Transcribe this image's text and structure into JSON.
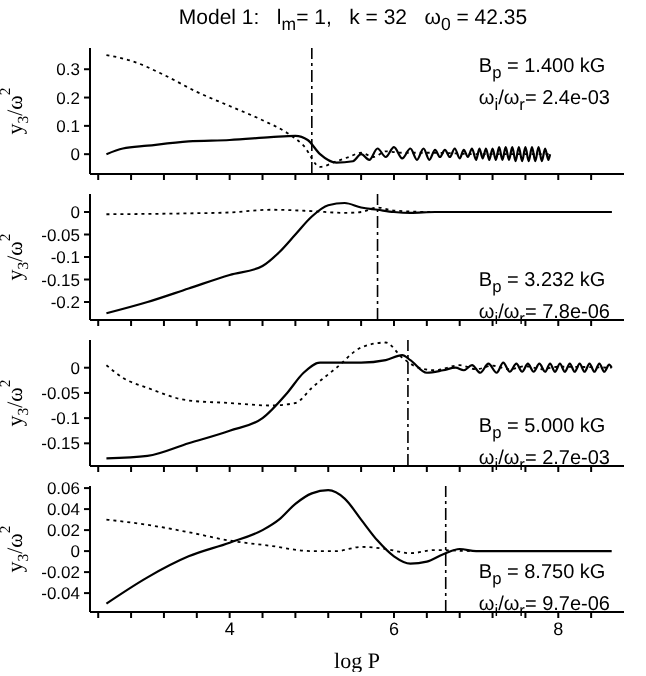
{
  "chart_data": [
    {
      "type": "line",
      "title": "Model 1:   l$_{m}$= 1,   k = 32   ω$_{0}$ = 42.35",
      "ylabel": "y$_{3}$/ω$^{2}$",
      "xlim": [
        2.3,
        8.8
      ],
      "xticks": [
        {
          "value": 2.4,
          "label": null
        },
        {
          "value": 2.8,
          "label": null
        },
        {
          "value": 3.2,
          "label": null
        },
        {
          "value": 3.6,
          "label": null
        },
        {
          "value": 4,
          "label": null
        },
        {
          "value": 4.4,
          "label": null
        },
        {
          "value": 4.8,
          "label": null
        },
        {
          "value": 5.2,
          "label": null
        },
        {
          "value": 5.6,
          "label": null
        },
        {
          "value": 6,
          "label": null
        },
        {
          "value": 6.4,
          "label": null
        },
        {
          "value": 6.8,
          "label": null
        },
        {
          "value": 7.2,
          "label": null
        },
        {
          "value": 7.6,
          "label": null
        },
        {
          "value": 8,
          "label": null
        },
        {
          "value": 8.4,
          "label": null
        }
      ],
      "ylim": [
        -0.07,
        0.375
      ],
      "yticks": [
        0,
        0.1,
        0.2,
        0.3
      ],
      "tick_labels": "y",
      "series": [
        {
          "color": "#000000",
          "line_style": "solid",
          "x": [
            2.5,
            2.7,
            3.0,
            3.5,
            4.0,
            4.5,
            4.8,
            4.95,
            5.1,
            5.3,
            5.5,
            5.6,
            5.7,
            5.8,
            5.9,
            6.0,
            6.1,
            6.2,
            6.28,
            6.36,
            6.43,
            6.5,
            6.56,
            6.62,
            6.68,
            6.74,
            6.8,
            6.85,
            6.9,
            6.95,
            7.0,
            7.04,
            7.08,
            7.12,
            7.16,
            7.2,
            7.24,
            7.28,
            7.32,
            7.36,
            7.4,
            7.44,
            7.48,
            7.52,
            7.56,
            7.6,
            7.64,
            7.68,
            7.72,
            7.76,
            7.8,
            7.84,
            7.88,
            7.9
          ],
          "values": [
            0,
            0.02,
            0.03,
            0.045,
            0.05,
            0.06,
            0.065,
            0.05,
            0,
            -0.03,
            -0.025,
            0,
            -0.02,
            0.02,
            -0.01,
            0.025,
            -0.015,
            0.02,
            -0.02,
            0.02,
            -0.02,
            0.015,
            -0.01,
            0.015,
            -0.01,
            0.02,
            -0.015,
            0.015,
            -0.01,
            0.02,
            -0.02,
            0.02,
            -0.015,
            0.02,
            -0.02,
            0.02,
            -0.02,
            0.025,
            -0.02,
            0.025,
            -0.02,
            0.025,
            -0.025,
            0.025,
            -0.025,
            0.025,
            -0.025,
            0.025,
            -0.025,
            0.025,
            -0.025,
            0.02,
            -0.02,
            0
          ]
        },
        {
          "color": "#000000",
          "line_style": "dotted",
          "x": [
            2.5,
            2.8,
            3.2,
            3.6,
            4.0,
            4.4,
            4.7,
            4.9,
            5.1,
            5.3,
            5.45,
            5.6,
            5.75,
            5.9,
            6.1,
            6.5,
            7.0,
            7.9
          ],
          "values": [
            0.35,
            0.33,
            0.28,
            0.22,
            0.17,
            0.12,
            0.075,
            0.03,
            -0.045,
            -0.025,
            -0.01,
            0.005,
            -0.01,
            0.01,
            0.005,
            0.005,
            0,
            0
          ]
        }
      ],
      "ref_lines": [
        {
          "axis": "x",
          "value": 5.0,
          "color": "#000000",
          "line_style": "dashed"
        }
      ],
      "annotations": [
        "B$_{p}$ = 1.400 kG",
        "ω$_{i}$/ω$_{r}$= 2.4e-03"
      ]
    },
    {
      "type": "line",
      "ylabel": "y$_{3}$/ω$^{2}$",
      "xlim": [
        2.3,
        8.8
      ],
      "xticks": [
        {
          "value": 2.4,
          "label": null
        },
        {
          "value": 2.8,
          "label": null
        },
        {
          "value": 3.2,
          "label": null
        },
        {
          "value": 3.6,
          "label": null
        },
        {
          "value": 4,
          "label": null
        },
        {
          "value": 4.4,
          "label": null
        },
        {
          "value": 4.8,
          "label": null
        },
        {
          "value": 5.2,
          "label": null
        },
        {
          "value": 5.6,
          "label": null
        },
        {
          "value": 6,
          "label": null
        },
        {
          "value": 6.4,
          "label": null
        },
        {
          "value": 6.8,
          "label": null
        },
        {
          "value": 7.2,
          "label": null
        },
        {
          "value": 7.6,
          "label": null
        },
        {
          "value": 8,
          "label": null
        },
        {
          "value": 8.4,
          "label": null
        }
      ],
      "ylim": [
        -0.24,
        0.04
      ],
      "yticks": [
        -0.2,
        -0.15,
        -0.1,
        -0.05,
        0
      ],
      "tick_labels": "y",
      "series": [
        {
          "color": "#000000",
          "line_style": "solid",
          "x": [
            2.5,
            3.0,
            3.5,
            4.0,
            4.4,
            4.6,
            4.8,
            5.0,
            5.2,
            5.4,
            5.6,
            5.8,
            6.0,
            6.2,
            6.5,
            8.65
          ],
          "values": [
            -0.225,
            -0.2,
            -0.17,
            -0.14,
            -0.12,
            -0.09,
            -0.05,
            -0.01,
            0.015,
            0.02,
            0.01,
            0.005,
            0,
            -0.002,
            0,
            0
          ]
        },
        {
          "color": "#000000",
          "line_style": "dotted",
          "x": [
            2.5,
            3.5,
            4.0,
            4.5,
            5.0,
            5.4,
            5.6,
            5.8,
            6.0,
            6.5,
            8.65
          ],
          "values": [
            -0.005,
            -0.003,
            -0.001,
            0.005,
            0.002,
            -0.002,
            0,
            0.01,
            0.003,
            0,
            0
          ]
        }
      ],
      "ref_lines": [
        {
          "axis": "x",
          "value": 5.8,
          "color": "#000000",
          "line_style": "dashed"
        }
      ],
      "annotations": [
        "B$_{p}$ = 3.232 kG",
        "ω$_{i}$/ω$_{r}$= 7.8e-06"
      ]
    },
    {
      "type": "line",
      "ylabel": "y$_{3}$/ω$^{2}$",
      "xlim": [
        2.3,
        8.8
      ],
      "xticks": [
        {
          "value": 2.4,
          "label": null
        },
        {
          "value": 2.8,
          "label": null
        },
        {
          "value": 3.2,
          "label": null
        },
        {
          "value": 3.6,
          "label": null
        },
        {
          "value": 4,
          "label": null
        },
        {
          "value": 4.4,
          "label": null
        },
        {
          "value": 4.8,
          "label": null
        },
        {
          "value": 5.2,
          "label": null
        },
        {
          "value": 5.6,
          "label": null
        },
        {
          "value": 6,
          "label": null
        },
        {
          "value": 6.4,
          "label": null
        },
        {
          "value": 6.8,
          "label": null
        },
        {
          "value": 7.2,
          "label": null
        },
        {
          "value": 7.6,
          "label": null
        },
        {
          "value": 8,
          "label": null
        },
        {
          "value": 8.4,
          "label": null
        }
      ],
      "ylim": [
        -0.195,
        0.055
      ],
      "yticks": [
        -0.15,
        -0.1,
        -0.05,
        0
      ],
      "tick_labels": "y",
      "series": [
        {
          "color": "#000000",
          "line_style": "solid",
          "x": [
            2.5,
            3.0,
            3.5,
            4.0,
            4.4,
            4.7,
            4.9,
            5.1,
            5.3,
            5.6,
            5.9,
            6.1,
            6.2,
            6.4,
            6.6,
            6.75,
            6.85,
            6.95,
            7.05,
            7.15,
            7.25,
            7.33,
            7.41,
            7.49,
            7.56,
            7.63,
            7.7,
            7.77,
            7.84,
            7.9,
            7.96,
            8.02,
            8.08,
            8.14,
            8.2,
            8.26,
            8.32,
            8.38,
            8.44,
            8.5,
            8.56,
            8.62,
            8.65
          ],
          "values": [
            -0.18,
            -0.175,
            -0.15,
            -0.125,
            -0.1,
            -0.05,
            -0.01,
            0.01,
            0.01,
            0.01,
            0.015,
            0.025,
            0.015,
            -0.01,
            -0.005,
            0,
            -0.005,
            0.005,
            -0.01,
            0.008,
            -0.01,
            0.01,
            -0.008,
            0.008,
            -0.008,
            0.008,
            -0.008,
            0.008,
            -0.008,
            0.008,
            -0.008,
            0.008,
            -0.008,
            0.008,
            -0.008,
            0.008,
            -0.008,
            0.008,
            -0.008,
            0.008,
            -0.008,
            0.006,
            0
          ]
        },
        {
          "color": "#000000",
          "line_style": "dotted",
          "x": [
            2.5,
            2.7,
            3.0,
            3.5,
            4.0,
            4.5,
            4.8,
            5.0,
            5.3,
            5.6,
            5.9,
            6.1,
            6.3,
            6.5,
            6.8,
            7.0,
            7.2,
            7.4,
            7.6,
            7.8,
            8.0,
            8.65
          ],
          "values": [
            0.005,
            -0.02,
            -0.04,
            -0.065,
            -0.07,
            -0.075,
            -0.07,
            -0.04,
            0,
            0.04,
            0.05,
            0.02,
            0,
            -0.005,
            0.005,
            -0.003,
            0.004,
            -0.003,
            0.003,
            -0.003,
            0.002,
            0
          ]
        }
      ],
      "ref_lines": [
        {
          "axis": "x",
          "value": 6.17,
          "color": "#000000",
          "line_style": "dashed"
        }
      ],
      "annotations": [
        "B$_{p}$ = 5.000 kG",
        "ω$_{i}$/ω$_{r}$= 2.7e-03"
      ]
    },
    {
      "type": "line",
      "ylabel": "y$_{3}$/ω$^{2}$",
      "xlabel": "log P",
      "xlim": [
        2.3,
        8.8
      ],
      "xticks": [
        {
          "value": 2.4,
          "label": null
        },
        {
          "value": 2.8,
          "label": null
        },
        {
          "value": 3.2,
          "label": null
        },
        {
          "value": 3.6,
          "label": null
        },
        {
          "value": 4,
          "label": "4"
        },
        {
          "value": 4.4,
          "label": null
        },
        {
          "value": 4.8,
          "label": null
        },
        {
          "value": 5.2,
          "label": null
        },
        {
          "value": 5.6,
          "label": null
        },
        {
          "value": 6,
          "label": "6"
        },
        {
          "value": 6.4,
          "label": null
        },
        {
          "value": 6.8,
          "label": null
        },
        {
          "value": 7.2,
          "label": null
        },
        {
          "value": 7.6,
          "label": null
        },
        {
          "value": 8,
          "label": "8"
        },
        {
          "value": 8.4,
          "label": null
        }
      ],
      "ylim": [
        -0.058,
        0.062
      ],
      "yticks": [
        -0.04,
        -0.02,
        0,
        0.02,
        0.04,
        0.06
      ],
      "series": [
        {
          "color": "#000000",
          "line_style": "solid",
          "x": [
            2.5,
            3.0,
            3.5,
            4.0,
            4.4,
            4.6,
            4.8,
            5.0,
            5.2,
            5.4,
            5.6,
            5.8,
            6.0,
            6.2,
            6.4,
            6.6,
            6.8,
            7.0,
            8.65
          ],
          "values": [
            -0.05,
            -0.025,
            -0.005,
            0.008,
            0.02,
            0.03,
            0.045,
            0.055,
            0.058,
            0.05,
            0.03,
            0.01,
            -0.005,
            -0.012,
            -0.01,
            -0.003,
            0.002,
            0,
            0
          ]
        },
        {
          "color": "#000000",
          "line_style": "dotted",
          "x": [
            2.5,
            3.0,
            3.5,
            4.0,
            4.5,
            5.0,
            5.3,
            5.6,
            5.9,
            6.2,
            6.5,
            7.0,
            8.65
          ],
          "values": [
            0.03,
            0.025,
            0.018,
            0.01,
            0.005,
            0,
            0,
            0.004,
            0.002,
            -0.002,
            0.001,
            0,
            0
          ]
        }
      ],
      "ref_lines": [
        {
          "axis": "x",
          "value": 6.63,
          "color": "#000000",
          "line_style": "dashed"
        }
      ],
      "annotations": [
        "B$_{p}$ = 8.750 kG",
        "ω$_{i}$/ω$_{r}$= 9.7e-06"
      ]
    }
  ]
}
